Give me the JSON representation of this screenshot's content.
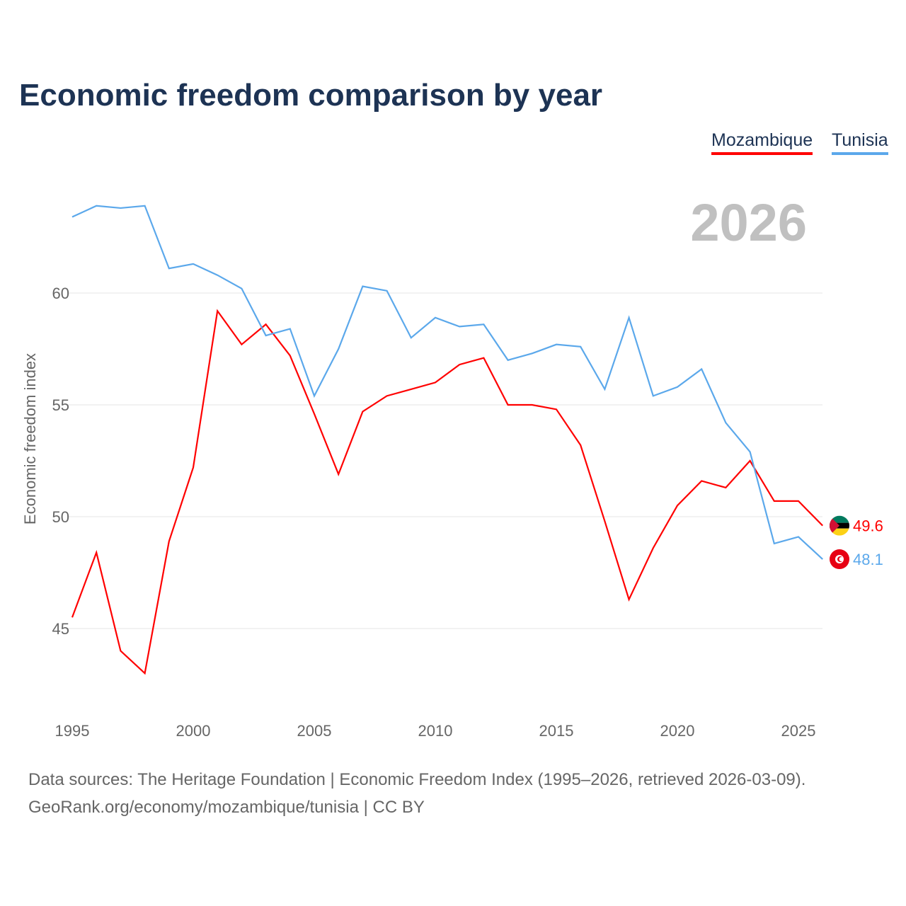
{
  "chart_data": {
    "type": "line",
    "title": "Economic freedom comparison by year",
    "xlabel": "",
    "ylabel": "Economic freedom index",
    "xlim": [
      1995,
      2026
    ],
    "ylim": [
      41.5,
      65
    ],
    "x_ticks": [
      1995,
      2000,
      2005,
      2010,
      2015,
      2020,
      2025
    ],
    "y_ticks": [
      45,
      50,
      55,
      60
    ],
    "grid": true,
    "legend_placement": "top-right",
    "current_year_label": "2026",
    "x": [
      1995,
      1996,
      1997,
      1998,
      1999,
      2000,
      2001,
      2002,
      2003,
      2004,
      2005,
      2006,
      2007,
      2008,
      2009,
      2010,
      2011,
      2012,
      2013,
      2014,
      2015,
      2016,
      2017,
      2018,
      2019,
      2020,
      2021,
      2022,
      2023,
      2024,
      2025,
      2026
    ],
    "series": [
      {
        "name": "Mozambique",
        "color": "#ff0000",
        "end_label": "49.6",
        "values": [
          45.5,
          48.4,
          44.0,
          43.0,
          48.9,
          52.2,
          59.2,
          57.7,
          58.6,
          57.2,
          54.6,
          51.9,
          54.7,
          55.4,
          55.7,
          56.0,
          56.8,
          57.1,
          55.0,
          55.0,
          54.8,
          53.2,
          49.8,
          46.3,
          48.6,
          50.5,
          51.6,
          51.3,
          52.5,
          50.7,
          50.7,
          49.6
        ]
      },
      {
        "name": "Tunisia",
        "color": "#5ba8eb",
        "end_label": "48.1",
        "values": [
          63.4,
          63.9,
          63.8,
          63.9,
          61.1,
          61.3,
          60.8,
          60.2,
          58.1,
          58.4,
          55.4,
          57.5,
          60.3,
          60.1,
          58.0,
          58.9,
          58.5,
          58.6,
          57.0,
          57.3,
          57.7,
          57.6,
          55.7,
          58.9,
          55.4,
          55.8,
          56.6,
          54.2,
          52.9,
          48.8,
          49.1,
          48.1
        ]
      }
    ]
  },
  "footer": {
    "line1": "Data sources: The Heritage Foundation | Economic Freedom Index (1995–2026, retrieved 2026-03-09).",
    "line2": "GeoRank.org/economy/mozambique/tunisia | CC BY"
  }
}
